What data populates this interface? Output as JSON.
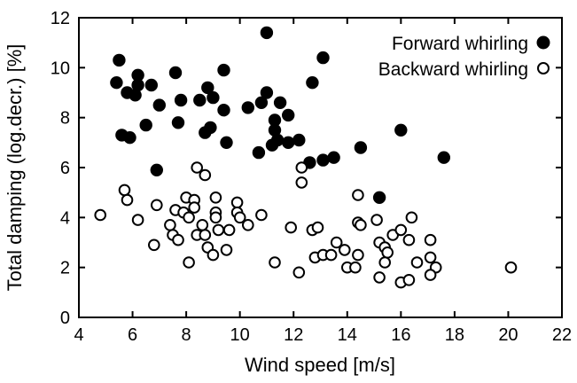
{
  "figure": {
    "background": "#ffffff",
    "foreground": "#000000"
  },
  "chart_data": {
    "type": "scatter",
    "title": "",
    "xlabel": "Wind speed [m/s]",
    "ylabel": "Total damping (log.decr.) [%]",
    "xlim": [
      4,
      22
    ],
    "ylim": [
      0,
      12
    ],
    "x_ticks": [
      4,
      6,
      8,
      10,
      12,
      14,
      16,
      18,
      20,
      22
    ],
    "y_ticks": [
      0,
      2,
      4,
      6,
      8,
      10,
      12
    ],
    "grid": false,
    "legend_position": "top-right",
    "marker_color": "#000000",
    "series": [
      {
        "name": "Forward whirling",
        "marker": "filled-circle",
        "points": [
          [
            5.5,
            10.3
          ],
          [
            5.4,
            9.4
          ],
          [
            5.8,
            9.0
          ],
          [
            6.1,
            8.9
          ],
          [
            6.2,
            9.7
          ],
          [
            6.2,
            9.3
          ],
          [
            6.7,
            9.3
          ],
          [
            7.6,
            9.8
          ],
          [
            9.4,
            9.9
          ],
          [
            7.0,
            8.5
          ],
          [
            7.8,
            8.7
          ],
          [
            8.5,
            8.7
          ],
          [
            8.8,
            9.2
          ],
          [
            9.0,
            8.8
          ],
          [
            9.4,
            8.3
          ],
          [
            10.3,
            8.4
          ],
          [
            5.6,
            7.3
          ],
          [
            5.9,
            7.2
          ],
          [
            6.5,
            7.7
          ],
          [
            7.7,
            7.8
          ],
          [
            8.7,
            7.4
          ],
          [
            8.9,
            7.6
          ],
          [
            9.5,
            7.0
          ],
          [
            6.9,
            5.9
          ],
          [
            11.0,
            11.4
          ],
          [
            12.7,
            9.4
          ],
          [
            13.1,
            10.4
          ],
          [
            10.8,
            8.6
          ],
          [
            11.0,
            9.0
          ],
          [
            11.5,
            8.6
          ],
          [
            11.8,
            8.1
          ],
          [
            11.3,
            7.9
          ],
          [
            11.3,
            7.5
          ],
          [
            11.4,
            7.1
          ],
          [
            11.8,
            7.0
          ],
          [
            12.2,
            7.1
          ],
          [
            11.2,
            6.9
          ],
          [
            10.7,
            6.6
          ],
          [
            12.6,
            6.2
          ],
          [
            13.1,
            6.3
          ],
          [
            13.5,
            6.4
          ],
          [
            14.5,
            6.8
          ],
          [
            16.0,
            7.5
          ],
          [
            17.6,
            6.4
          ],
          [
            15.2,
            4.8
          ]
        ]
      },
      {
        "name": "Backward whirling",
        "marker": "open-circle",
        "points": [
          [
            4.8,
            4.1
          ],
          [
            5.7,
            5.1
          ],
          [
            5.8,
            4.7
          ],
          [
            6.2,
            3.9
          ],
          [
            6.9,
            4.5
          ],
          [
            6.8,
            2.9
          ],
          [
            8.4,
            6.0
          ],
          [
            8.7,
            5.7
          ],
          [
            8.0,
            4.8
          ],
          [
            8.3,
            4.7
          ],
          [
            7.6,
            4.3
          ],
          [
            7.9,
            4.2
          ],
          [
            8.3,
            4.4
          ],
          [
            8.1,
            4.0
          ],
          [
            7.4,
            3.7
          ],
          [
            9.1,
            4.8
          ],
          [
            9.1,
            4.2
          ],
          [
            9.1,
            4.0
          ],
          [
            9.9,
            4.6
          ],
          [
            9.9,
            4.2
          ],
          [
            10.0,
            4.0
          ],
          [
            7.5,
            3.3
          ],
          [
            7.7,
            3.1
          ],
          [
            8.4,
            3.3
          ],
          [
            8.7,
            3.3
          ],
          [
            8.6,
            3.7
          ],
          [
            9.2,
            3.5
          ],
          [
            9.6,
            3.5
          ],
          [
            8.8,
            2.8
          ],
          [
            9.0,
            2.5
          ],
          [
            9.5,
            2.7
          ],
          [
            8.1,
            2.2
          ],
          [
            10.3,
            3.7
          ],
          [
            10.8,
            4.1
          ],
          [
            11.3,
            2.2
          ],
          [
            11.9,
            3.6
          ],
          [
            12.2,
            1.8
          ],
          [
            12.7,
            3.5
          ],
          [
            12.9,
            3.6
          ],
          [
            12.8,
            2.4
          ],
          [
            13.1,
            2.5
          ],
          [
            13.4,
            2.5
          ],
          [
            13.6,
            3.0
          ],
          [
            13.9,
            2.7
          ],
          [
            14.4,
            2.5
          ],
          [
            14.0,
            2.0
          ],
          [
            14.3,
            2.0
          ],
          [
            12.3,
            6.0
          ],
          [
            12.3,
            5.4
          ],
          [
            14.4,
            4.9
          ],
          [
            14.4,
            3.8
          ],
          [
            14.5,
            3.7
          ],
          [
            15.1,
            3.9
          ],
          [
            15.7,
            3.3
          ],
          [
            16.0,
            3.5
          ],
          [
            16.3,
            3.1
          ],
          [
            16.4,
            4.0
          ],
          [
            17.1,
            3.1
          ],
          [
            15.2,
            3.0
          ],
          [
            15.4,
            2.8
          ],
          [
            15.5,
            2.6
          ],
          [
            15.4,
            2.2
          ],
          [
            15.2,
            1.6
          ],
          [
            16.6,
            2.2
          ],
          [
            17.1,
            2.4
          ],
          [
            17.3,
            2.0
          ],
          [
            17.1,
            1.7
          ],
          [
            16.0,
            1.4
          ],
          [
            16.3,
            1.5
          ],
          [
            20.1,
            2.0
          ]
        ]
      }
    ]
  }
}
